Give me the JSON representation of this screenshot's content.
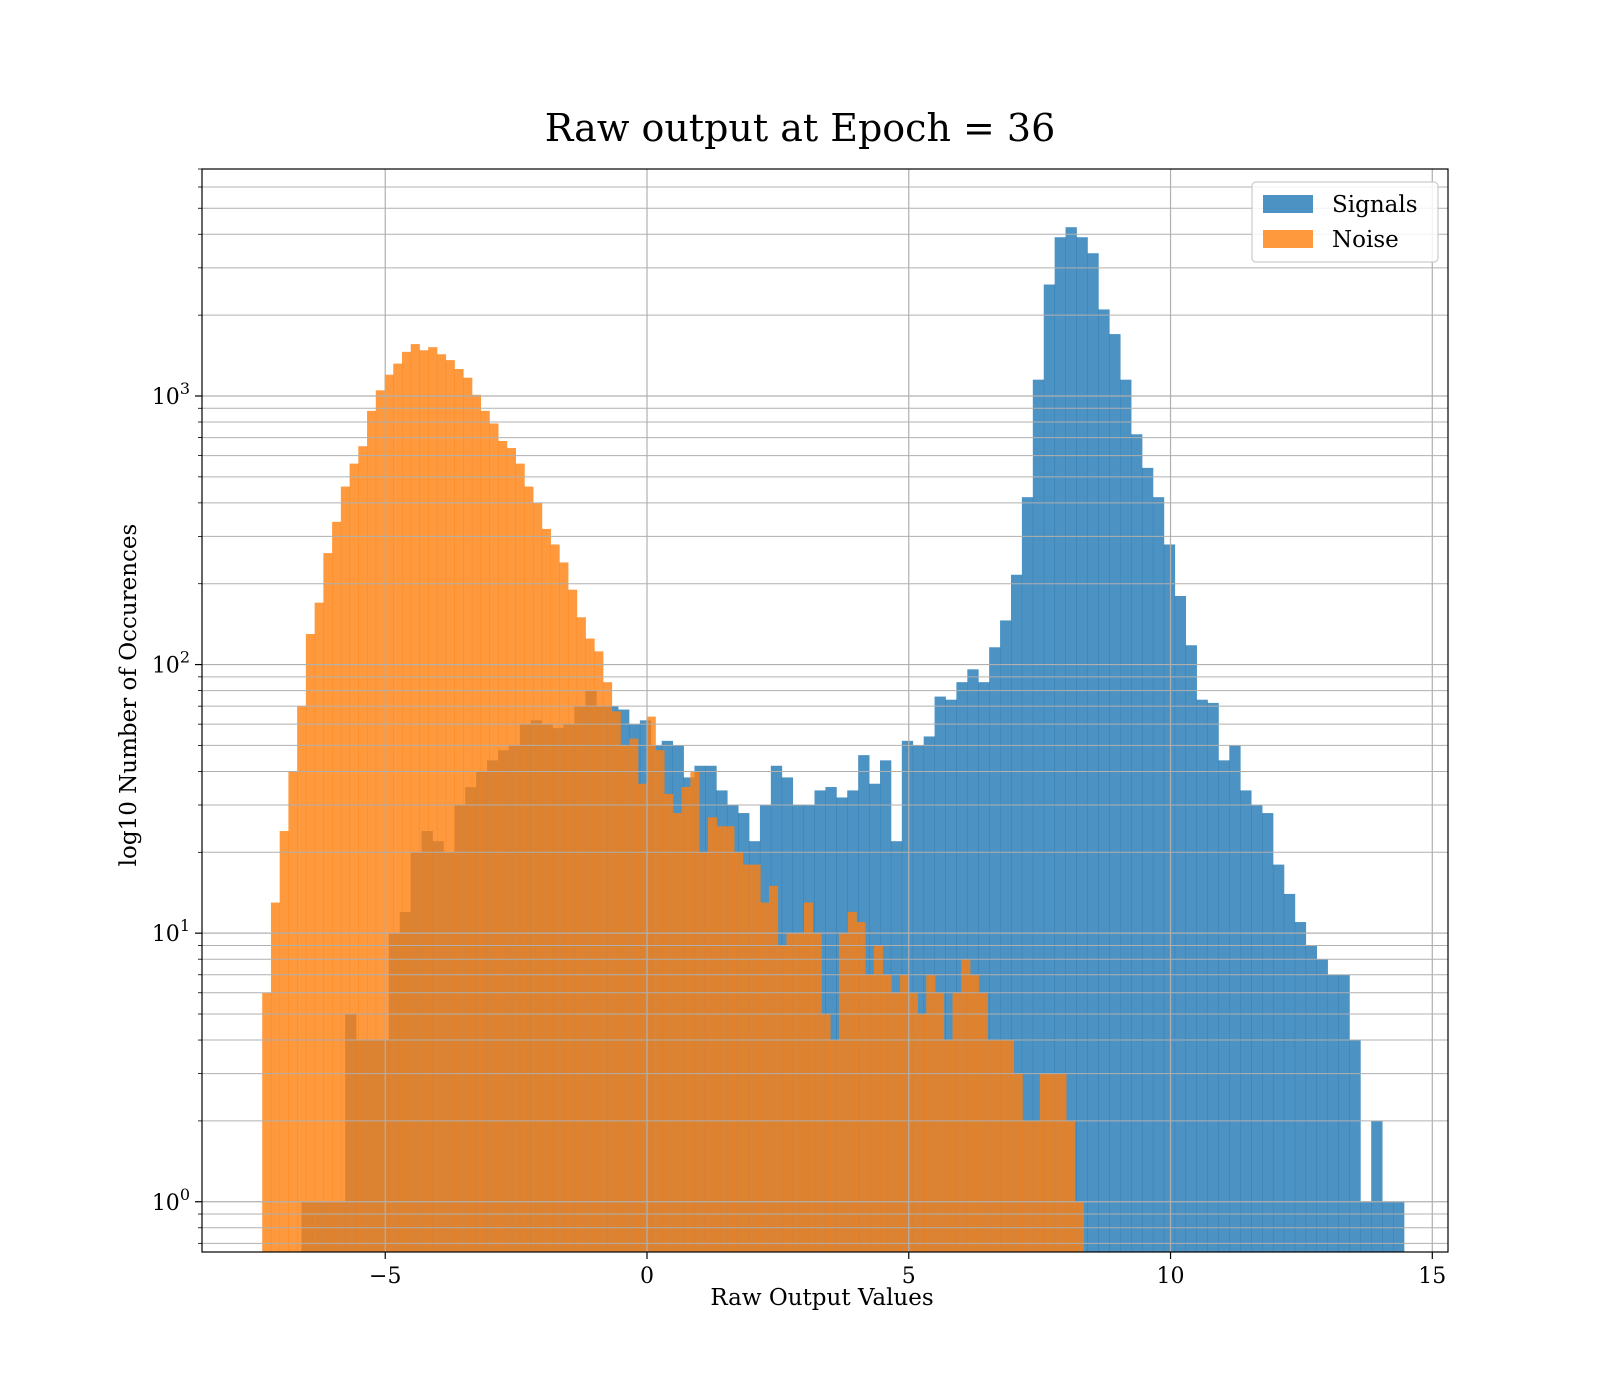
{
  "chart_data": {
    "type": "bar",
    "title": "Raw output at Epoch = 36",
    "xlabel": "Raw Output Values",
    "ylabel": "log10 Number of Occurences",
    "xlim": [
      -8.5,
      15.3
    ],
    "ylim": [
      0.65,
      7000
    ],
    "yscale": "log",
    "grid": true,
    "legend_position": "top-right",
    "x_ticks": [
      -5,
      0,
      5,
      10,
      15
    ],
    "x_tick_labels": [
      "−5",
      "0",
      "5",
      "10",
      "15"
    ],
    "y_ticks": [
      1,
      10,
      100,
      1000
    ],
    "y_tick_labels": [
      {
        "base": "10",
        "exp": "0"
      },
      {
        "base": "10",
        "exp": "1"
      },
      {
        "base": "10",
        "exp": "2"
      },
      {
        "base": "10",
        "exp": "3"
      }
    ],
    "series": [
      {
        "name": "Signals",
        "color": "#1f77b4",
        "opacity": 0.8,
        "bin_start": -6.6,
        "bin_width": 0.2085,
        "values": [
          1,
          1,
          1,
          1,
          5,
          4,
          4,
          4,
          10,
          12,
          20,
          24,
          22,
          20,
          30,
          35,
          40,
          44,
          48,
          50,
          60,
          62,
          60,
          58,
          60,
          70,
          80,
          70,
          70,
          68,
          60,
          62,
          50,
          52,
          50,
          38,
          42,
          42,
          34,
          30,
          28,
          22,
          30,
          42,
          38,
          30,
          30,
          34,
          35,
          32,
          34,
          46,
          36,
          44,
          22,
          52,
          50,
          54,
          76,
          74,
          86,
          96,
          86,
          116,
          146,
          216,
          420,
          1150,
          2600,
          3900,
          4250,
          3900,
          3400,
          2100,
          1700,
          1150,
          720,
          540,
          420,
          280,
          180,
          118,
          74,
          72,
          44,
          50,
          34,
          30,
          28,
          18,
          14,
          11,
          9,
          8,
          7,
          7,
          4,
          1,
          2,
          1,
          1
        ]
      },
      {
        "name": "Noise",
        "color": "#ff7f0e",
        "opacity": 0.8,
        "bin_start": -7.35,
        "bin_width": 0.1669,
        "values": [
          6,
          13,
          24,
          40,
          70,
          130,
          170,
          260,
          340,
          460,
          560,
          650,
          880,
          1050,
          1200,
          1320,
          1460,
          1560,
          1480,
          1520,
          1430,
          1360,
          1260,
          1170,
          1010,
          880,
          790,
          680,
          640,
          560,
          460,
          400,
          320,
          280,
          240,
          190,
          150,
          125,
          112,
          86,
          67,
          50,
          53,
          36,
          64,
          48,
          33,
          28,
          35,
          40,
          20,
          27,
          25,
          25,
          20,
          18,
          18,
          13,
          15,
          9,
          10,
          10,
          13,
          10,
          5,
          4,
          10,
          12,
          11,
          7,
          9,
          7,
          6,
          7,
          6,
          5,
          7,
          6,
          4,
          6,
          8,
          7,
          6,
          4,
          4,
          4,
          3,
          2,
          2,
          3,
          3,
          3,
          2,
          1
        ]
      }
    ]
  }
}
